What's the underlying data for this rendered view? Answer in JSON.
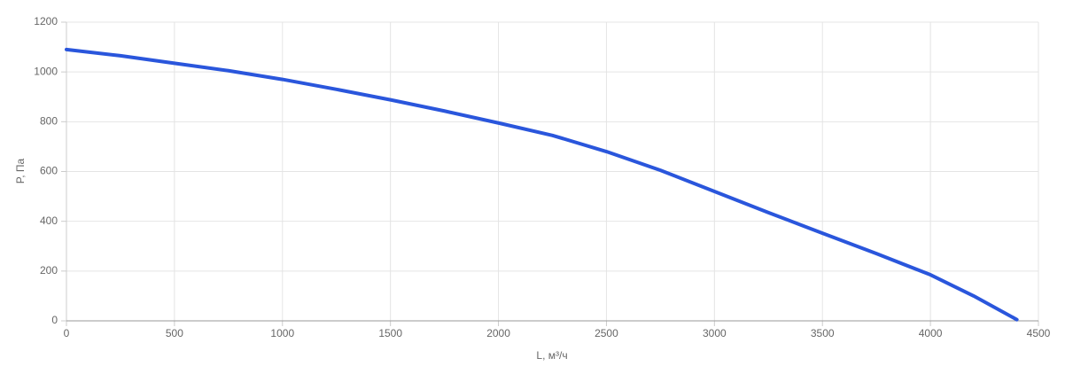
{
  "chart_data": {
    "type": "line",
    "x_label": "L, м³/ч",
    "y_label": "P, Па",
    "x": [
      0,
      250,
      500,
      750,
      1000,
      1250,
      1500,
      1750,
      2000,
      2250,
      2500,
      2750,
      3000,
      3250,
      3500,
      3750,
      4000,
      4200,
      4400
    ],
    "series": [
      {
        "name": "P",
        "color": "#2a56dc",
        "values": [
          1090,
          1065,
          1035,
          1005,
          970,
          930,
          888,
          843,
          795,
          745,
          680,
          605,
          520,
          435,
          352,
          270,
          185,
          100,
          5
        ]
      }
    ],
    "xlim": [
      0,
      4500
    ],
    "xticks": [
      0,
      500,
      1000,
      1500,
      2000,
      2500,
      3000,
      3500,
      4000,
      4500
    ],
    "ylim": [
      0,
      1200
    ],
    "yticks": [
      0,
      200,
      400,
      600,
      800,
      1000,
      1200
    ],
    "grid": true
  }
}
